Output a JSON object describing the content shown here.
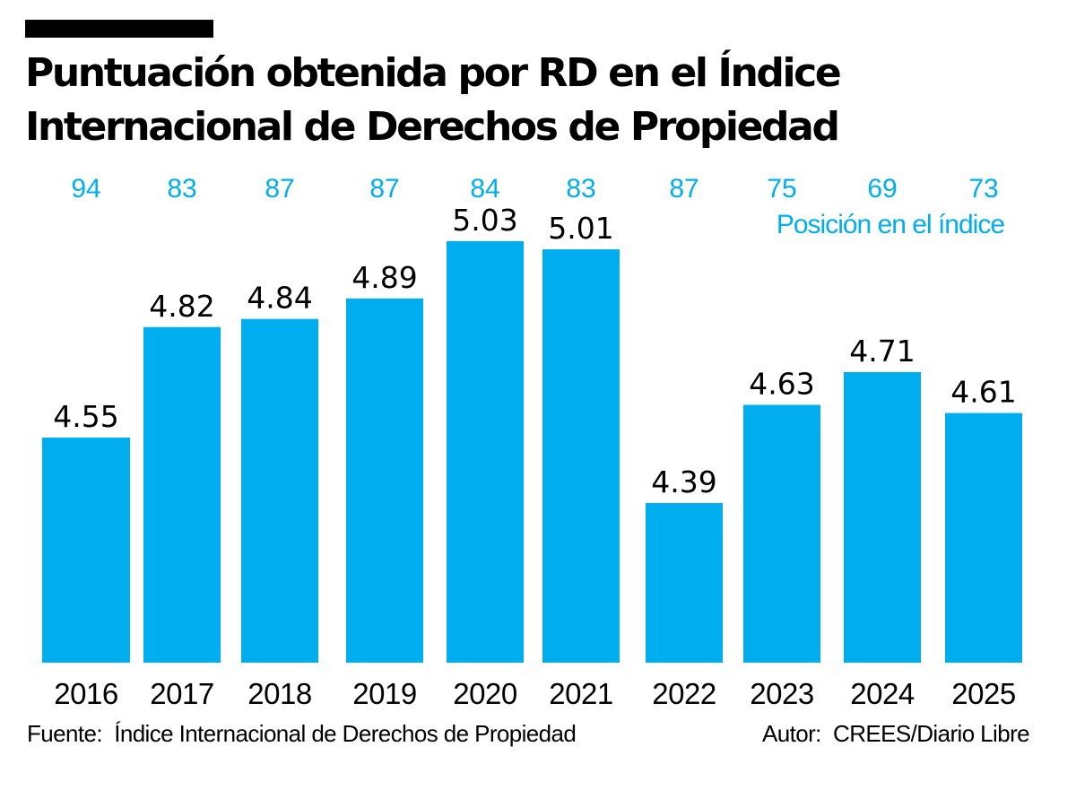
{
  "header": {
    "title_line1": "Puntuación obtenida por RD en el Índice",
    "title_line2": "Internacional de Derechos de Propiedad"
  },
  "colors": {
    "bar": "#00aeef",
    "rank_text": "#00aeef",
    "text": "#000000"
  },
  "chart_data": {
    "type": "bar",
    "title": "Puntuación obtenida por RD en el Índice Internacional de Derechos de Propiedad",
    "categories": [
      "2016",
      "2017",
      "2018",
      "2019",
      "2020",
      "2021",
      "2022",
      "2023",
      "2024",
      "2025"
    ],
    "values": [
      4.55,
      4.82,
      4.84,
      4.89,
      5.03,
      5.01,
      4.39,
      4.63,
      4.71,
      4.61
    ],
    "value_labels": [
      "4.55",
      "4.82",
      "4.84",
      "4.89",
      "5.03",
      "5.01",
      "4.39",
      "4.63",
      "4.71",
      "4.61"
    ],
    "secondary_series": {
      "name": "Posición en el índice",
      "values": [
        94,
        83,
        87,
        87,
        84,
        83,
        87,
        75,
        69,
        73
      ]
    },
    "xlabel": "",
    "ylabel": "",
    "ylim": [
      4.0,
      5.1
    ],
    "grid": false,
    "legend": "none"
  },
  "footer": {
    "source": "Fuente:  Índice Internacional de Derechos de Propiedad",
    "author": "Autor:  CREES/Diario Libre"
  }
}
